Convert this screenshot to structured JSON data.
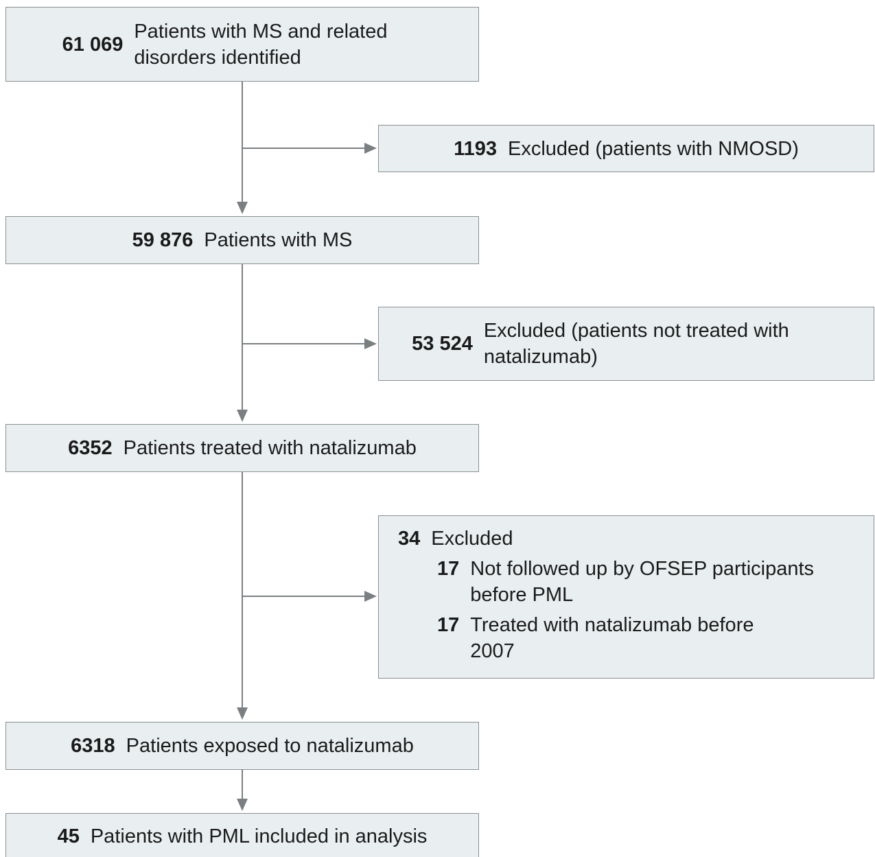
{
  "nodes": [
    {
      "count": "61 069",
      "label": "Patients with MS and related disorders identified"
    },
    {
      "count": "59 876",
      "label": "Patients with MS"
    },
    {
      "count": "6352",
      "label": "Patients treated with natalizumab"
    },
    {
      "count": "6318",
      "label": "Patients exposed to natalizumab"
    },
    {
      "count": "45",
      "label": "Patients with PML included in analysis"
    }
  ],
  "exclusions": [
    {
      "count": "1193",
      "label": "Excluded (patients with NMOSD)"
    },
    {
      "count": "53 524",
      "label": "Excluded (patients not treated with natalizumab)"
    },
    {
      "count": "34",
      "label": "Excluded",
      "items": [
        {
          "count": "17",
          "label": "Not followed up by OFSEP participants before PML"
        },
        {
          "count": "17",
          "label": "Treated with natalizumab before 2007"
        }
      ]
    }
  ]
}
